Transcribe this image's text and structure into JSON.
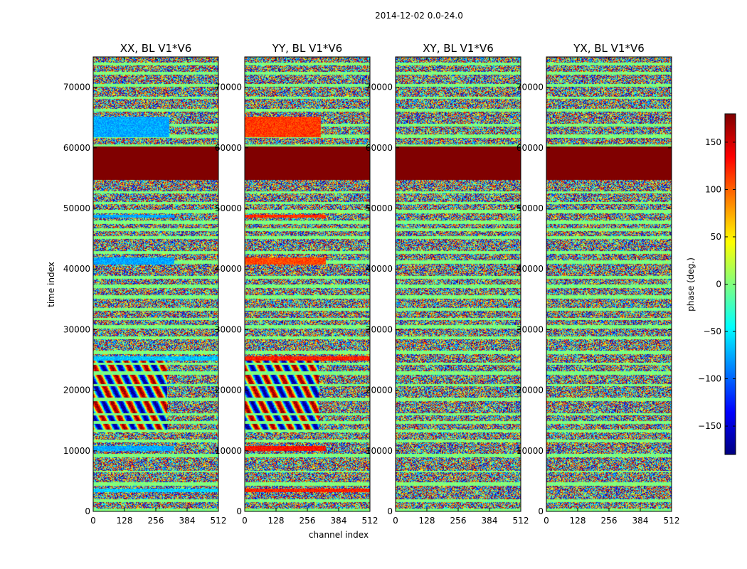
{
  "figure": {
    "suptitle": "2014-12-02 0.0-24.0"
  },
  "chart_data": {
    "type": "heatmap",
    "title": "2014-12-02 0.0-24.0",
    "xlabel": "channel index",
    "ylabel": "time index",
    "xlim": [
      0,
      512
    ],
    "ylim": [
      0,
      75000
    ],
    "xticks": [
      0,
      128,
      256,
      384,
      512
    ],
    "yticks": [
      0,
      10000,
      20000,
      30000,
      40000,
      50000,
      60000,
      70000
    ],
    "panels": [
      {
        "name": "XX, BL V1*V6",
        "title": "XX, BL V1*V6"
      },
      {
        "name": "YY, BL V1*V6",
        "title": "YY, BL V1*V6"
      },
      {
        "name": "XY, BL V1*V6",
        "title": "XY, BL V1*V6"
      },
      {
        "name": "YX, BL V1*V6",
        "title": "YX, BL V1*V6"
      }
    ],
    "grid": false,
    "colormap": "jet",
    "colorbar": {
      "label": "phase (deg.)",
      "range": [
        -180,
        180
      ],
      "ticks": [
        -150,
        -100,
        -50,
        0,
        50,
        100,
        150
      ],
      "tick_labels": [
        "−150",
        "−100",
        "−50",
        "0",
        "50",
        "100",
        "150"
      ]
    },
    "flagged_time_range": [
      54800,
      60300
    ],
    "flagged_value": 180,
    "coherent_bands": [
      {
        "time_range": [
          40800,
          42000
        ],
        "channels": [
          0,
          330
        ],
        "XX": -75,
        "YY": 110
      },
      {
        "time_range": [
          48500,
          49000
        ],
        "channels": [
          0,
          330
        ],
        "XX": -75,
        "YY": 120
      },
      {
        "time_range": [
          61800,
          65200
        ],
        "channels": [
          0,
          310
        ],
        "XX": -75,
        "YY": 115
      },
      {
        "time_range": [
          10000,
          10900
        ],
        "channels": [
          0,
          330
        ],
        "XX": -75,
        "YY": 130
      },
      {
        "time_range": [
          3200,
          3800
        ],
        "channels": [
          0,
          512
        ],
        "XX": -60,
        "YY": 125
      },
      {
        "time_range": [
          25000,
          25600
        ],
        "channels": [
          0,
          512
        ],
        "XX": -65,
        "YY": 125
      }
    ]
  }
}
